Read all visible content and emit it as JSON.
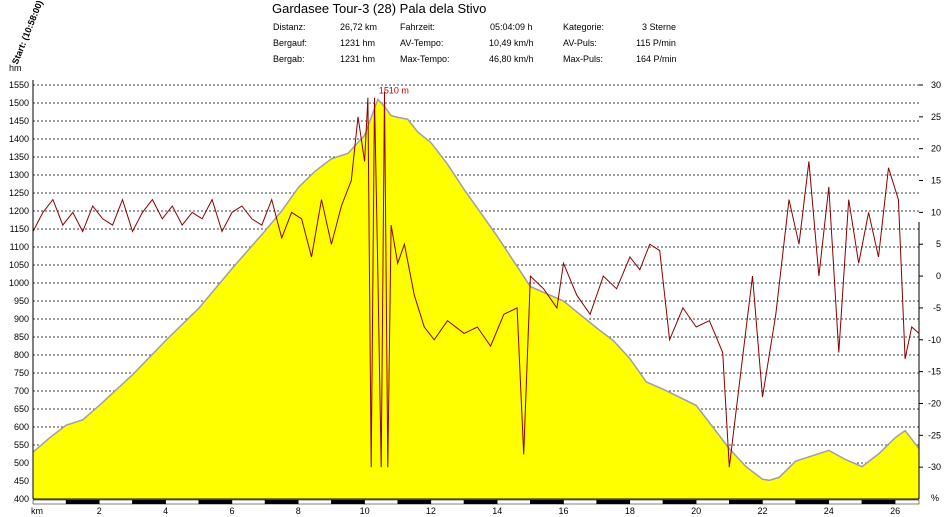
{
  "header": {
    "title": "Gardasee Tour-3 (28) Pala dela Stivo",
    "start_label": "Start: (10:58:00)",
    "left_axis_unit": "hm",
    "right_axis_unit": "%",
    "x_axis_unit": "km",
    "peak_label": "1510 m"
  },
  "stats": [
    {
      "label": "Distanz:",
      "value": "26,72 km"
    },
    {
      "label": "Fahrzeit:",
      "value": "05:04:09 h"
    },
    {
      "label": "Kategorie:",
      "value": "3 Sterne"
    },
    {
      "label": "Bergauf:",
      "value": "1231 hm"
    },
    {
      "label": "AV-Tempo:",
      "value": "10,49 km/h"
    },
    {
      "label": "AV-Puls:",
      "value": "115 P/min"
    },
    {
      "label": "Bergab:",
      "value": "1231 hm"
    },
    {
      "label": "Max-Tempo:",
      "value": "46,80 km/h"
    },
    {
      "label": "Max-Puls:",
      "value": "164 P/min"
    }
  ],
  "colors": {
    "elevation_fill": "#ffff00",
    "elevation_line": "#a0a0a0",
    "grade_line": "#8b0000",
    "peak_label": "#cc0000",
    "grid": "#000000"
  },
  "chart_data": {
    "type": "area",
    "xlim": [
      0,
      26.72
    ],
    "ylim": [
      400,
      1550
    ],
    "y2lim": [
      -35,
      30
    ],
    "x_ticks": [
      "2",
      "4",
      "6",
      "8",
      "10",
      "12",
      "14",
      "16",
      "18",
      "20",
      "22",
      "24",
      "26"
    ],
    "y_ticks": [
      "400",
      "450",
      "500",
      "550",
      "600",
      "650",
      "700",
      "750",
      "800",
      "850",
      "900",
      "950",
      "1000",
      "1050",
      "1100",
      "1150",
      "1200",
      "1250",
      "1300",
      "1350",
      "1400",
      "1450",
      "1500",
      "1550"
    ],
    "y2_ticks": [
      "-30",
      "-25",
      "-20",
      "-15",
      "-10",
      "-5",
      "0",
      "5",
      "10",
      "15",
      "20",
      "25",
      "30"
    ],
    "grid": true,
    "series": [
      {
        "kind": "elevation",
        "unit": "hm",
        "x": [
          0,
          0.5,
          1,
          1.5,
          2,
          3,
          4,
          5,
          6,
          7,
          7.5,
          8,
          8.5,
          9,
          9.5,
          10,
          10.2,
          10.4,
          10.6,
          10.8,
          11,
          11.3,
          11.6,
          12,
          12.5,
          13,
          14,
          15,
          16,
          17,
          17.5,
          18,
          18.5,
          19,
          20,
          21,
          21.5,
          22,
          22.2,
          22.5,
          23,
          24,
          24.5,
          25,
          25.5,
          26,
          26.3,
          26.72
        ],
        "y": [
          530,
          570,
          605,
          620,
          660,
          745,
          840,
          930,
          1040,
          1145,
          1200,
          1265,
          1310,
          1345,
          1360,
          1410,
          1460,
          1510,
          1490,
          1465,
          1460,
          1455,
          1420,
          1390,
          1330,
          1260,
          1130,
          990,
          950,
          875,
          840,
          790,
          725,
          705,
          660,
          540,
          490,
          455,
          452,
          460,
          505,
          535,
          510,
          490,
          525,
          570,
          590,
          540
        ]
      },
      {
        "kind": "grade",
        "unit": "%",
        "x": [
          0,
          0.3,
          0.6,
          0.9,
          1.2,
          1.5,
          1.8,
          2.1,
          2.4,
          2.7,
          3.0,
          3.3,
          3.6,
          3.9,
          4.2,
          4.5,
          4.8,
          5.1,
          5.4,
          5.7,
          6.0,
          6.3,
          6.6,
          6.9,
          7.2,
          7.5,
          7.8,
          8.1,
          8.4,
          8.7,
          9.0,
          9.3,
          9.6,
          9.8,
          10.0,
          10.1,
          10.2,
          10.3,
          10.4,
          10.5,
          10.6,
          10.7,
          10.8,
          11.0,
          11.2,
          11.5,
          11.8,
          12.1,
          12.5,
          13.0,
          13.4,
          13.8,
          14.2,
          14.6,
          14.8,
          15.0,
          15.4,
          15.8,
          16.0,
          16.4,
          16.8,
          17.2,
          17.6,
          18.0,
          18.3,
          18.6,
          18.9,
          19.2,
          19.6,
          20.0,
          20.4,
          20.8,
          21.0,
          21.3,
          21.7,
          22.0,
          22.4,
          22.8,
          23.1,
          23.4,
          23.7,
          24.0,
          24.3,
          24.6,
          24.9,
          25.2,
          25.5,
          25.8,
          26.1,
          26.3,
          26.5,
          26.72
        ],
        "y": [
          7,
          10,
          12,
          8,
          10,
          7,
          11,
          9,
          8,
          12,
          7,
          10,
          12,
          9,
          11,
          8,
          10,
          9,
          12,
          7,
          10,
          11,
          9,
          8,
          12,
          6,
          10,
          9,
          3,
          12,
          5,
          11,
          15,
          25,
          18,
          28,
          -30,
          28,
          0,
          -30,
          29,
          -30,
          8,
          2,
          5,
          -3,
          -8,
          -10,
          -7,
          -9,
          -8,
          -11,
          -6,
          -5,
          -28,
          0,
          -2,
          -5,
          2,
          -3,
          -6,
          0,
          -2,
          3,
          1,
          5,
          4,
          -10,
          -5,
          -8,
          -7,
          -12,
          -30,
          -17,
          0,
          -19,
          -6,
          12,
          5,
          18,
          0,
          14,
          -12,
          12,
          2,
          10,
          3,
          17,
          12,
          -13,
          -8,
          -9
        ]
      }
    ]
  }
}
